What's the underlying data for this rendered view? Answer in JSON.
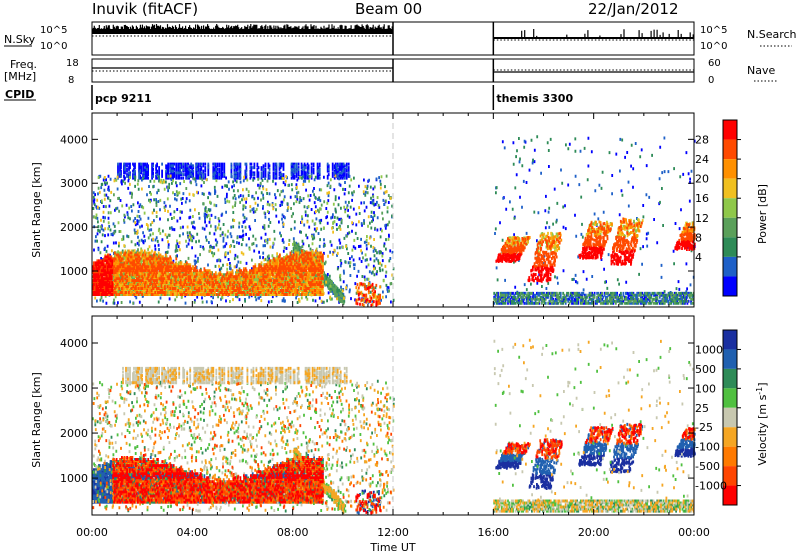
{
  "header": {
    "station": "Inuvik (fitACF)",
    "beam": "Beam 00",
    "date": "22/Jan/2012"
  },
  "labels": {
    "nsky": "N.Sky",
    "nsearch": "N.Search",
    "freq_top": "Freq.",
    "freq_unit": "[MHz]",
    "nave": "Nave",
    "cpid": "CPID",
    "nsky_ticks": [
      "10^5",
      "10^0"
    ],
    "nsearch_ticks": [
      "10^5",
      "10^0"
    ],
    "freq_ticks": [
      "18",
      "8"
    ],
    "nave_ticks": [
      "60",
      "0"
    ]
  },
  "cpid_segments": [
    {
      "label": "pcp 9211",
      "start_h": 0,
      "end_h": 12
    },
    {
      "label": "themis 3300",
      "start_h": 16,
      "end_h": 24
    }
  ],
  "chart_data": [
    {
      "type": "heatmap",
      "title": "Power",
      "ylabel": "Slant Range [km]",
      "ylim": [
        180,
        4600
      ],
      "yticks": [
        1000,
        2000,
        3000,
        4000
      ],
      "xlabel": "Time UT",
      "xlim": [
        0,
        24
      ],
      "colorbar": {
        "label": "Power [dB]",
        "ticks": [
          "4",
          "8",
          "12",
          "16",
          "20",
          "24",
          "28"
        ],
        "colors": [
          "#0000ff",
          "#1e60c8",
          "#2e8b57",
          "#5aa05a",
          "#8fc84a",
          "#f0c020",
          "#ff9000",
          "#ff4a00",
          "#ff0000"
        ]
      }
    },
    {
      "type": "heatmap",
      "title": "Velocity",
      "ylabel": "Slant Range [km]",
      "ylim": [
        180,
        4600
      ],
      "yticks": [
        1000,
        2000,
        3000,
        4000
      ],
      "xlabel": "Time UT",
      "xlim": [
        0,
        24
      ],
      "xticks": [
        "00:00",
        "04:00",
        "08:00",
        "12:00",
        "16:00",
        "20:00",
        "00:00"
      ],
      "colorbar": {
        "label": "Velocity [m s-1]",
        "label_main": "Velocity [m s",
        "label_sup": "-1",
        "label_end": "]",
        "ticks": [
          "1000",
          "500",
          "100",
          "25",
          "-25",
          "-100",
          "-500",
          "-1000"
        ],
        "colors": [
          "#1a2fa0",
          "#2060b0",
          "#2e8b57",
          "#50c040",
          "#c8c8b0",
          "#f5a623",
          "#ff7a00",
          "#ff4500",
          "#ff0000"
        ]
      }
    }
  ]
}
